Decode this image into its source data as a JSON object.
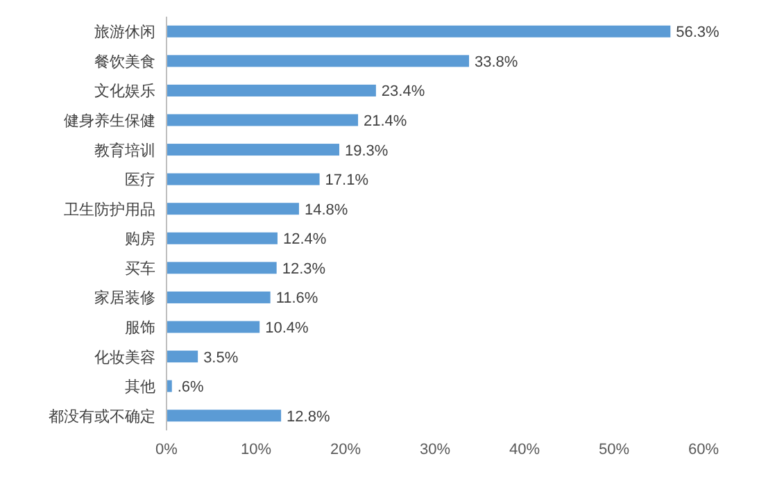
{
  "chart_data": {
    "type": "bar",
    "orientation": "horizontal",
    "categories": [
      "旅游休闲",
      "餐饮美食",
      "文化娱乐",
      "健身养生保健",
      "教育培训",
      "医疗",
      "卫生防护用品",
      "购房",
      "买车",
      "家居装修",
      "服饰",
      "化妆美容",
      "其他",
      "都没有或不确定"
    ],
    "values": [
      56.3,
      33.8,
      23.4,
      21.4,
      19.3,
      17.1,
      14.8,
      12.4,
      12.3,
      11.6,
      10.4,
      3.5,
      0.6,
      12.8
    ],
    "value_labels": [
      "56.3%",
      "33.8%",
      "23.4%",
      "21.4%",
      "19.3%",
      "17.1%",
      "14.8%",
      "12.4%",
      "12.3%",
      "11.6%",
      "10.4%",
      "3.5%",
      ".6%",
      "12.8%"
    ],
    "color": "#5b9bd5",
    "xlim": [
      0,
      60
    ],
    "xticks": [
      {
        "value": 0,
        "label": "0%"
      },
      {
        "value": 10,
        "label": "10%"
      },
      {
        "value": 20,
        "label": "20%"
      },
      {
        "value": 30,
        "label": "30%"
      },
      {
        "value": 40,
        "label": "40%"
      },
      {
        "value": 50,
        "label": "50%"
      },
      {
        "value": 60,
        "label": "60%"
      }
    ]
  }
}
